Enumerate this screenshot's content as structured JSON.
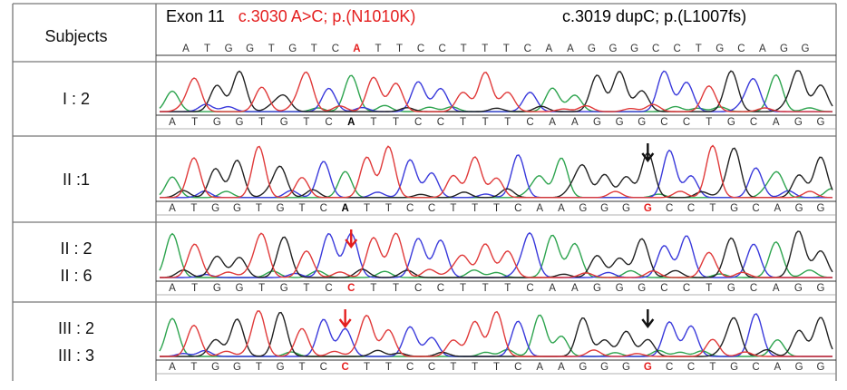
{
  "header": {
    "subjects_label": "Subjects",
    "exon_label": "Exon 11",
    "mutation1": "c.3030 A>C; p.(N1010K)",
    "mutation2": "c.3019 dupC; p.(L1007fs)"
  },
  "colors": {
    "A": "#2ea44f",
    "C": "#3a3adb",
    "G": "#222222",
    "T": "#e03a3a",
    "highlight": "#e41e1e",
    "border": "#777777"
  },
  "reference_sequence": [
    "A",
    "T",
    "G",
    "G",
    "T",
    "G",
    "T",
    "C",
    "A",
    "T",
    "T",
    "C",
    "C",
    "T",
    "T",
    "T",
    "C",
    "A",
    "A",
    "G",
    "G",
    "G",
    "C",
    "C",
    "T",
    "G",
    "C",
    "A",
    "G",
    "G"
  ],
  "rows": [
    {
      "subjects": [
        "I : 2"
      ],
      "sequence": [
        "A",
        "T",
        "G",
        "G",
        "T",
        "G",
        "T",
        "C",
        "A",
        "T",
        "T",
        "C",
        "C",
        "T",
        "T",
        "T",
        "C",
        "A",
        "A",
        "G",
        "G",
        "G",
        "C",
        "C",
        "T",
        "G",
        "C",
        "A",
        "G",
        "G"
      ],
      "highlights": [
        {
          "index": 8,
          "color": "black"
        }
      ],
      "arrows": []
    },
    {
      "subjects": [
        "II :1"
      ],
      "sequence": [
        "A",
        "T",
        "G",
        "G",
        "T",
        "G",
        "T",
        "C",
        "A",
        "T",
        "T",
        "C",
        "C",
        "T",
        "T",
        "T",
        "C",
        "A",
        "A",
        "G",
        "G",
        "G",
        "G",
        "C",
        "C",
        "T",
        "G",
        "C",
        "A",
        "G",
        "G"
      ],
      "highlights": [
        {
          "index": 8,
          "color": "black"
        },
        {
          "index": 22,
          "color": "red"
        }
      ],
      "arrows": [
        {
          "base_index": 22,
          "color": "black"
        }
      ]
    },
    {
      "subjects": [
        "II : 2",
        "II : 6"
      ],
      "sequence": [
        "A",
        "T",
        "G",
        "G",
        "T",
        "G",
        "T",
        "C",
        "C",
        "T",
        "T",
        "C",
        "C",
        "T",
        "T",
        "T",
        "C",
        "A",
        "A",
        "G",
        "G",
        "G",
        "C",
        "C",
        "T",
        "G",
        "C",
        "A",
        "G",
        "G"
      ],
      "highlights": [
        {
          "index": 8,
          "color": "red"
        }
      ],
      "arrows": [
        {
          "base_index": 8,
          "color": "red"
        }
      ]
    },
    {
      "subjects": [
        "III : 2",
        "III : 3"
      ],
      "sequence": [
        "A",
        "T",
        "G",
        "G",
        "T",
        "G",
        "T",
        "C",
        "C",
        "T",
        "T",
        "C",
        "C",
        "T",
        "T",
        "T",
        "C",
        "A",
        "A",
        "G",
        "G",
        "G",
        "G",
        "C",
        "C",
        "T",
        "G",
        "C",
        "A",
        "G",
        "G"
      ],
      "highlights": [
        {
          "index": 8,
          "color": "red"
        },
        {
          "index": 22,
          "color": "red"
        }
      ],
      "arrows": [
        {
          "base_index": 8,
          "color": "red"
        },
        {
          "base_index": 22,
          "color": "black"
        }
      ]
    }
  ]
}
